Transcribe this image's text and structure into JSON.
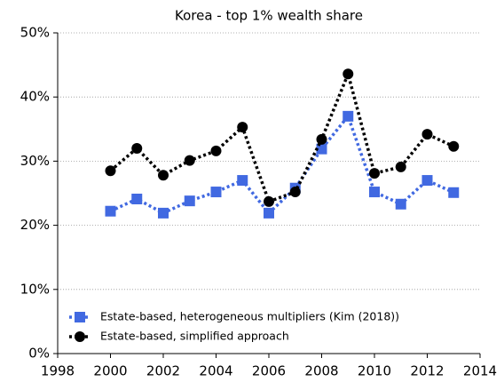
{
  "chart_data": {
    "type": "line",
    "title": "Korea - top 1% wealth share",
    "x": [
      2000,
      2001,
      2002,
      2003,
      2004,
      2005,
      2006,
      2007,
      2008,
      2009,
      2010,
      2011,
      2012,
      2013
    ],
    "series": [
      {
        "name": "Estate-based, heterogeneous multipliers (Kim (2018))",
        "color": "#4169e1",
        "marker": "square",
        "linestyle": "dotted",
        "values": [
          22.2,
          24.1,
          21.9,
          23.8,
          25.2,
          27.0,
          21.9,
          25.8,
          31.9,
          37.0,
          25.2,
          23.3,
          27.0,
          25.1
        ]
      },
      {
        "name": "Estate-based, simplified approach",
        "color": "#000000",
        "marker": "circle",
        "linestyle": "dotted",
        "values": [
          28.5,
          32.0,
          27.8,
          30.1,
          31.6,
          35.3,
          23.7,
          25.2,
          33.4,
          43.6,
          28.1,
          29.1,
          34.2,
          32.3
        ]
      }
    ],
    "xlim": [
      1998,
      2014
    ],
    "xticks": [
      1998,
      2000,
      2002,
      2004,
      2006,
      2008,
      2010,
      2012,
      2014
    ],
    "ylim": [
      0,
      50
    ],
    "yticks": [
      {
        "value": 0,
        "label": "0%"
      },
      {
        "value": 10,
        "label": "10%"
      },
      {
        "value": 20,
        "label": "20%"
      },
      {
        "value": 30,
        "label": "30%"
      },
      {
        "value": 40,
        "label": "40%"
      },
      {
        "value": 50,
        "label": "50%"
      }
    ],
    "grid": true,
    "legend": "lower left"
  }
}
